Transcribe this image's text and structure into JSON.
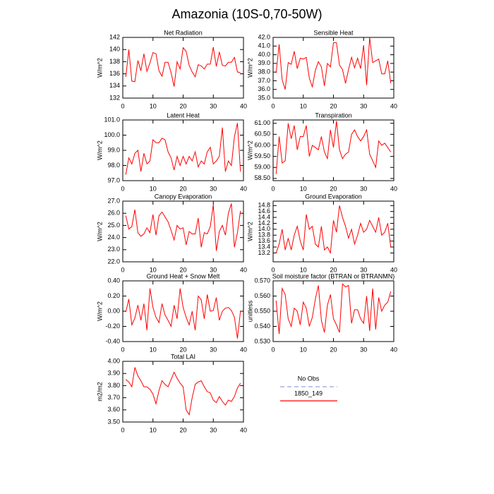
{
  "title": "Amazonia (10S-0,70-50W)",
  "chart_data": [
    {
      "type": "line",
      "title": "Net Radiation",
      "ylabel": "W/m^2",
      "color": "#ff0000",
      "x": [
        1,
        2,
        3,
        4,
        5,
        6,
        7,
        8,
        9,
        10,
        11,
        12,
        13,
        14,
        15,
        16,
        17,
        18,
        19,
        20,
        21,
        22,
        23,
        24,
        25,
        26,
        27,
        28,
        29,
        30,
        31,
        32,
        33,
        34,
        35,
        36,
        37,
        38,
        39
      ],
      "values": [
        135.5,
        140,
        134.8,
        134.7,
        138.2,
        136.5,
        139.3,
        136.4,
        137.8,
        139.5,
        139.3,
        136.5,
        135.6,
        137.9,
        137.9,
        136.2,
        133.9,
        138,
        136.8,
        140.3,
        139.7,
        137.4,
        136.3,
        135.5,
        137.5,
        137.3,
        136.8,
        137.6,
        137.6,
        140.4,
        137.2,
        139.6,
        137.4,
        137.3,
        137.9,
        137.9,
        138.7,
        136.3,
        136.2
      ],
      "xlim": [
        0,
        40
      ],
      "xticks": [
        0,
        10,
        20,
        30,
        40
      ],
      "ylim": [
        132,
        142
      ],
      "yticks": [
        132,
        134,
        136,
        138,
        140,
        142
      ]
    },
    {
      "type": "line",
      "title": "Sensible Heat",
      "ylabel": "W/m^2",
      "color": "#ff0000",
      "x": [
        1,
        2,
        3,
        4,
        5,
        6,
        7,
        8,
        9,
        10,
        11,
        12,
        13,
        14,
        15,
        16,
        17,
        18,
        19,
        20,
        21,
        22,
        23,
        24,
        25,
        26,
        27,
        28,
        29,
        30,
        31,
        32,
        33,
        34,
        35,
        36,
        37,
        38,
        39
      ],
      "values": [
        37.9,
        41.2,
        37.1,
        36.0,
        39.1,
        38.9,
        40.4,
        38.4,
        39.6,
        39.5,
        39.7,
        37.3,
        36.3,
        38.2,
        39.2,
        38.6,
        36.4,
        39.0,
        38.6,
        41.4,
        41.4,
        38.8,
        38.3,
        36.7,
        38.3,
        39.7,
        38.5,
        39.6,
        38.4,
        41.1,
        36.5,
        42.0,
        39.1,
        39.3,
        39.5,
        37.8,
        37.8,
        39.3,
        36.7
      ],
      "xlim": [
        0,
        40
      ],
      "xticks": [
        0,
        10,
        20,
        30,
        40
      ],
      "ylim": [
        35,
        42
      ],
      "yticks": [
        {
          "value": 35,
          "label": "35.0"
        },
        {
          "value": 36,
          "label": "36.0"
        },
        {
          "value": 37,
          "label": "37.0"
        },
        {
          "value": 38,
          "label": "38.0"
        },
        {
          "value": 39,
          "label": "39.0"
        },
        {
          "value": 40,
          "label": "40.0"
        },
        {
          "value": 41,
          "label": "41.0"
        },
        {
          "value": 42,
          "label": "42.0"
        }
      ]
    },
    {
      "type": "line",
      "title": "Latent Heat",
      "ylabel": "W/m^2",
      "color": "#ff0000",
      "x": [
        1,
        2,
        3,
        4,
        5,
        6,
        7,
        8,
        9,
        10,
        11,
        12,
        13,
        14,
        15,
        16,
        17,
        18,
        19,
        20,
        21,
        22,
        23,
        24,
        25,
        26,
        27,
        28,
        29,
        30,
        31,
        32,
        33,
        34,
        35,
        36,
        37,
        38,
        39
      ],
      "values": [
        97.4,
        98.5,
        98.1,
        98.8,
        99.0,
        97.6,
        98.8,
        98.1,
        98.3,
        99.7,
        99.5,
        99.5,
        99.8,
        99.7,
        98.9,
        98.5,
        97.7,
        98.6,
        98.0,
        98.6,
        98.1,
        98.6,
        98.3,
        98.9,
        97.9,
        98.3,
        98.1,
        98.9,
        99.2,
        98.1,
        98.3,
        98.6,
        100.5,
        97.6,
        98.3,
        98.0,
        99.9,
        100.8,
        97.6
      ],
      "xlim": [
        0,
        40
      ],
      "xticks": [
        0,
        10,
        20,
        30,
        40
      ],
      "ylim": [
        97,
        101
      ],
      "yticks": [
        {
          "value": 97,
          "label": "97.0"
        },
        {
          "value": 98,
          "label": "98.0"
        },
        {
          "value": 99,
          "label": "99.0"
        },
        {
          "value": 100,
          "label": "100.0"
        },
        {
          "value": 101,
          "label": "101.0"
        }
      ]
    },
    {
      "type": "line",
      "title": "Transpiration",
      "ylabel": "W/m^2",
      "color": "#ff0000",
      "x": [
        1,
        2,
        3,
        4,
        5,
        6,
        7,
        8,
        9,
        10,
        11,
        12,
        13,
        14,
        15,
        16,
        17,
        18,
        19,
        20,
        21,
        22,
        23,
        24,
        25,
        26,
        27,
        28,
        29,
        30,
        31,
        32,
        33,
        34,
        35,
        36,
        37,
        38,
        39
      ],
      "values": [
        58.7,
        60.4,
        59.2,
        59.3,
        61.0,
        60.3,
        60.9,
        59.8,
        60.4,
        60.4,
        60.9,
        59.5,
        60.0,
        59.9,
        59.8,
        60.4,
        59.7,
        59.4,
        60.7,
        59.9,
        61.1,
        59.8,
        59.4,
        59.6,
        59.7,
        60.5,
        60.7,
        60.4,
        60.2,
        60.4,
        60.7,
        59.6,
        59.3,
        59.0,
        60.2,
        60.0,
        60.1,
        59.9,
        59.7
      ],
      "xlim": [
        0,
        40
      ],
      "xticks": [
        0,
        10,
        20,
        30,
        40
      ],
      "ylim": [
        58.4,
        61.15
      ],
      "yticks": [
        {
          "value": 58.5,
          "label": "58.50"
        },
        {
          "value": 59,
          "label": "59.00"
        },
        {
          "value": 59.5,
          "label": "59.50"
        },
        {
          "value": 60,
          "label": "60.00"
        },
        {
          "value": 60.5,
          "label": "60.50"
        },
        {
          "value": 61,
          "label": "61.00"
        }
      ]
    },
    {
      "type": "line",
      "title": "Canopy Evaporation",
      "ylabel": "W/m^2",
      "color": "#ff0000",
      "x": [
        1,
        2,
        3,
        4,
        5,
        6,
        7,
        8,
        9,
        10,
        11,
        12,
        13,
        14,
        15,
        16,
        17,
        18,
        19,
        20,
        21,
        22,
        23,
        24,
        25,
        26,
        27,
        28,
        29,
        30,
        31,
        32,
        33,
        34,
        35,
        36,
        37,
        38,
        39
      ],
      "values": [
        25.8,
        24.7,
        24.9,
        26.3,
        24.4,
        24.1,
        24.3,
        24.8,
        24.4,
        25.9,
        24.2,
        25.8,
        26.1,
        25.7,
        25.3,
        24.6,
        23.8,
        25.0,
        24.7,
        24.8,
        23.4,
        24.5,
        24.3,
        24.3,
        25.6,
        23.2,
        24.4,
        24.3,
        24.9,
        26.7,
        22.9,
        24.5,
        25.0,
        24.2,
        26.0,
        26.8,
        23.2,
        24.4,
        26.2
      ],
      "xlim": [
        0,
        40
      ],
      "xticks": [
        0,
        10,
        20,
        30,
        40
      ],
      "ylim": [
        22,
        27
      ],
      "yticks": [
        {
          "value": 22,
          "label": "22.0"
        },
        {
          "value": 23,
          "label": "23.0"
        },
        {
          "value": 24,
          "label": "24.0"
        },
        {
          "value": 25,
          "label": "25.0"
        },
        {
          "value": 26,
          "label": "26.0"
        },
        {
          "value": 27,
          "label": "27.0"
        }
      ]
    },
    {
      "type": "line",
      "title": "Ground Evaporation",
      "ylabel": "W/m^2",
      "color": "#ff0000",
      "x": [
        1,
        2,
        3,
        4,
        5,
        6,
        7,
        8,
        9,
        10,
        11,
        12,
        13,
        14,
        15,
        16,
        17,
        18,
        19,
        20,
        21,
        22,
        23,
        24,
        25,
        26,
        27,
        28,
        29,
        30,
        31,
        32,
        33,
        34,
        35,
        36,
        37,
        38,
        39
      ],
      "values": [
        13.2,
        13.5,
        14.0,
        13.3,
        13.7,
        13.3,
        13.8,
        14.1,
        13.6,
        13.3,
        14.5,
        14.0,
        14.1,
        13.5,
        13.4,
        14.1,
        13.3,
        13.4,
        13.2,
        14.3,
        13.9,
        14.8,
        14.4,
        14.1,
        13.7,
        14.0,
        13.5,
        13.8,
        14.2,
        13.9,
        14.0,
        14.3,
        14.1,
        13.9,
        14.4,
        13.8,
        13.9,
        14.2,
        13.4
      ],
      "xlim": [
        0,
        40
      ],
      "xticks": [
        0,
        10,
        20,
        30,
        40
      ],
      "ylim": [
        12.9,
        14.95
      ],
      "yticks": [
        13.2,
        13.4,
        13.6,
        13.8,
        {
          "value": 14,
          "label": "14.0"
        },
        14.2,
        14.4,
        14.6,
        14.8
      ]
    },
    {
      "type": "line",
      "title": "Ground Heat + Snow Melt",
      "ylabel": "W/m^2",
      "color": "#ff0000",
      "x": [
        1,
        2,
        3,
        4,
        5,
        6,
        7,
        8,
        9,
        10,
        11,
        12,
        13,
        14,
        15,
        16,
        17,
        18,
        19,
        20,
        21,
        22,
        23,
        24,
        25,
        26,
        27,
        28,
        29,
        30,
        31,
        32,
        33,
        34,
        35,
        36,
        37,
        38,
        39
      ],
      "values": [
        -0.01,
        0.16,
        -0.18,
        -0.09,
        0.08,
        -0.12,
        0.1,
        -0.25,
        0.3,
        0.05,
        -0.08,
        -0.15,
        0.1,
        -0.05,
        -0.12,
        -0.2,
        0.08,
        -0.1,
        0.3,
        0.05,
        -0.08,
        -0.18,
        0.0,
        -0.25,
        0.2,
        0.15,
        -0.1,
        0.22,
        0.0,
        0.01,
        0.18,
        -0.12,
        0.0,
        0.04,
        0.05,
        0.01,
        -0.08,
        -0.36,
        0.0
      ],
      "xlim": [
        0,
        40
      ],
      "xticks": [
        0,
        10,
        20,
        30,
        40
      ],
      "ylim": [
        -0.4,
        0.4
      ],
      "yticks": [
        {
          "value": -0.4,
          "label": "-0.40"
        },
        {
          "value": -0.2,
          "label": "-0.20"
        },
        {
          "value": 0,
          "label": "0.00"
        },
        {
          "value": 0.2,
          "label": "0.20"
        },
        {
          "value": 0.4,
          "label": "0.40"
        }
      ]
    },
    {
      "type": "line",
      "title": "Soil moisture factor (BTRAN or BTRANMN)",
      "ylabel": "unitless",
      "color": "#ff0000",
      "x": [
        1,
        2,
        3,
        4,
        5,
        6,
        7,
        8,
        9,
        10,
        11,
        12,
        13,
        14,
        15,
        16,
        17,
        18,
        19,
        20,
        21,
        22,
        23,
        24,
        25,
        26,
        27,
        28,
        29,
        30,
        31,
        32,
        33,
        34,
        35,
        36,
        37,
        38,
        39
      ],
      "values": [
        0.557,
        0.535,
        0.565,
        0.561,
        0.545,
        0.54,
        0.552,
        0.55,
        0.541,
        0.556,
        0.552,
        0.54,
        0.546,
        0.558,
        0.567,
        0.544,
        0.536,
        0.554,
        0.561,
        0.545,
        0.541,
        0.536,
        0.568,
        0.566,
        0.567,
        0.542,
        0.551,
        0.551,
        0.545,
        0.542,
        0.56,
        0.537,
        0.565,
        0.538,
        0.559,
        0.55,
        0.554,
        0.556,
        0.563
      ],
      "xlim": [
        0,
        40
      ],
      "xticks": [
        0,
        10,
        20,
        30,
        40
      ],
      "ylim": [
        0.53,
        0.57
      ],
      "yticks": [
        {
          "value": 0.53,
          "label": "0.530"
        },
        {
          "value": 0.54,
          "label": "0.540"
        },
        {
          "value": 0.55,
          "label": "0.550"
        },
        {
          "value": 0.56,
          "label": "0.560"
        },
        {
          "value": 0.57,
          "label": "0.570"
        }
      ]
    },
    {
      "type": "line",
      "title": "Total LAI",
      "ylabel": "m2/m2",
      "color": "#ff0000",
      "x": [
        1,
        2,
        3,
        4,
        5,
        6,
        7,
        8,
        9,
        10,
        11,
        12,
        13,
        14,
        15,
        16,
        17,
        18,
        19,
        20,
        21,
        22,
        23,
        24,
        25,
        26,
        27,
        28,
        29,
        30,
        31,
        32,
        33,
        34,
        35,
        36,
        37,
        38,
        39
      ],
      "values": [
        3.85,
        3.83,
        3.79,
        3.95,
        3.88,
        3.84,
        3.79,
        3.79,
        3.77,
        3.73,
        3.65,
        3.76,
        3.84,
        3.81,
        3.79,
        3.85,
        3.91,
        3.86,
        3.82,
        3.79,
        3.6,
        3.56,
        3.7,
        3.81,
        3.83,
        3.84,
        3.79,
        3.75,
        3.74,
        3.68,
        3.66,
        3.71,
        3.67,
        3.64,
        3.68,
        3.67,
        3.71,
        3.78,
        3.82
      ],
      "xlim": [
        0,
        40
      ],
      "xticks": [
        0,
        10,
        20,
        30,
        40
      ],
      "ylim": [
        3.5,
        4.0
      ],
      "yticks": [
        {
          "value": 3.5,
          "label": "3.50"
        },
        {
          "value": 3.6,
          "label": "3.60"
        },
        {
          "value": 3.7,
          "label": "3.70"
        },
        {
          "value": 3.8,
          "label": "3.80"
        },
        {
          "value": 3.9,
          "label": "3.90"
        },
        {
          "value": 4.0,
          "label": "4.00"
        }
      ]
    }
  ],
  "legend": {
    "entries": [
      {
        "name": "No Obs",
        "color": "#9aa0e0",
        "dashed": true
      },
      {
        "name": "1850_149",
        "color": "#ff0000",
        "dashed": false
      }
    ]
  }
}
